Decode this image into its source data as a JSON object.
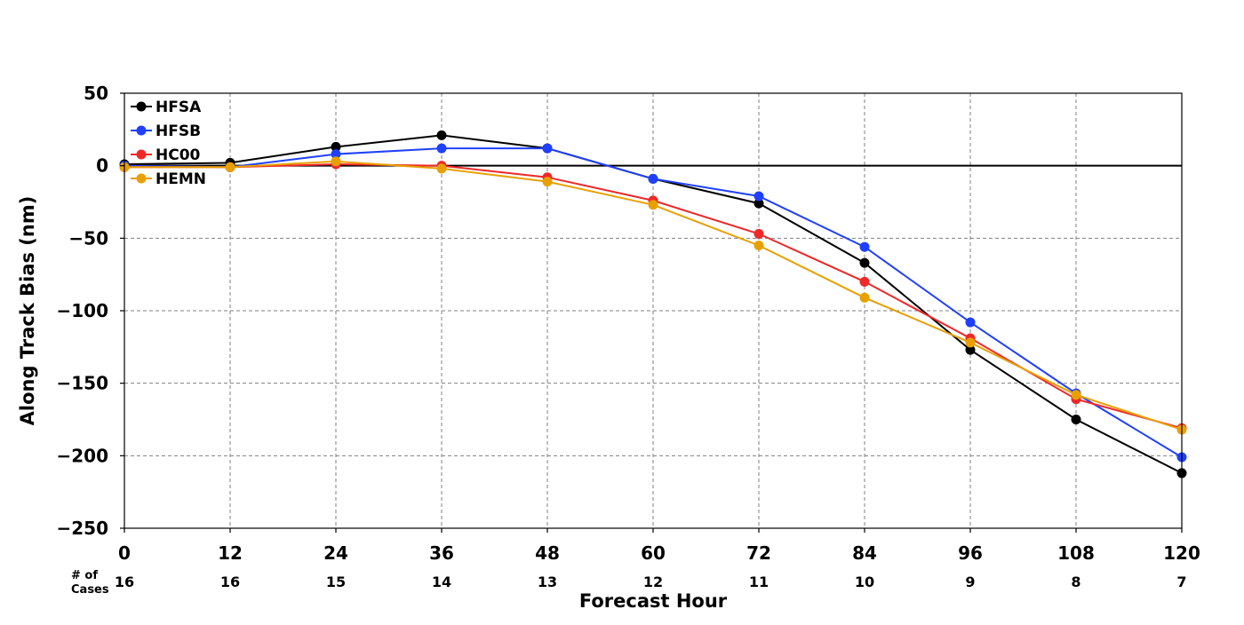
{
  "chart_data": {
    "type": "line",
    "xlabel": "Forecast Hour",
    "ylabel": "Along Track Bias (nm)",
    "x": [
      0,
      12,
      24,
      36,
      48,
      60,
      72,
      84,
      96,
      108,
      120
    ],
    "x_tick_labels": [
      "0",
      "12",
      "24",
      "36",
      "48",
      "60",
      "72",
      "84",
      "96",
      "108",
      "120"
    ],
    "xlim": [
      0,
      120
    ],
    "ylim": [
      -250,
      50
    ],
    "y_ticks": [
      50,
      0,
      -50,
      -100,
      -150,
      -200,
      -250
    ],
    "y_tick_labels": [
      "50",
      "0",
      "−50",
      "−100",
      "−150",
      "−200",
      "−250"
    ],
    "grid": true,
    "zero_line": true,
    "legend_position": "top-left",
    "cases_label": "# of Cases",
    "cases_label_lines": [
      "# of",
      "Cases"
    ],
    "cases": [
      "16",
      "16",
      "15",
      "14",
      "13",
      "12",
      "11",
      "10",
      "9",
      "8",
      "7"
    ],
    "series": [
      {
        "name": "HFSA",
        "color": "#000000",
        "values": [
          1,
          2,
          13,
          21,
          12,
          -9,
          -26,
          -67,
          -127,
          -175,
          -212
        ]
      },
      {
        "name": "HFSB",
        "color": "#2040ff",
        "values": [
          0,
          -1,
          8,
          12,
          12,
          -9,
          -21,
          -56,
          -108,
          -157,
          -201
        ]
      },
      {
        "name": "HC00",
        "color": "#f02828",
        "values": [
          -1,
          -1,
          1,
          0,
          -8,
          -24,
          -47,
          -80,
          -119,
          -161,
          -181
        ]
      },
      {
        "name": "HEMN",
        "color": "#e8a000",
        "values": [
          -1,
          -1,
          3,
          -2,
          -11,
          -27,
          -55,
          -91,
          -122,
          -158,
          -182
        ]
      }
    ]
  }
}
